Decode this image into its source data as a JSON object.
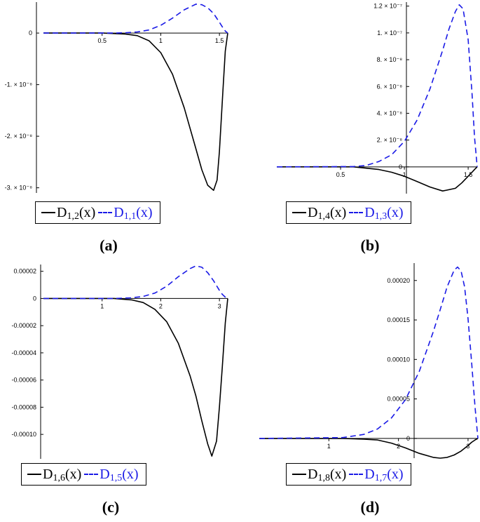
{
  "colors": {
    "solid": "#000000",
    "dashed": "#1a1ae6"
  },
  "chart_data": [
    {
      "type": "line",
      "caption": "(a)",
      "xlim": [
        0,
        1.5708
      ],
      "ylim": [
        -3.1e-08,
        6e-09
      ],
      "xticks": [
        {
          "v": 0.5,
          "label": "0.5"
        },
        {
          "v": 1,
          "label": "1"
        },
        {
          "v": 1.5,
          "label": "1.5"
        }
      ],
      "yticks": [
        {
          "v": 0,
          "label": "0"
        },
        {
          "v": -1e-08,
          "label": "-1. × 10⁻⁸"
        },
        {
          "v": -2e-08,
          "label": "-2. × 10⁻⁸"
        },
        {
          "v": -3e-08,
          "label": "-3. × 10⁻⁸"
        }
      ],
      "series": [
        {
          "name": "D1,2(x)",
          "base": "D",
          "sub": "1,2",
          "arg": "(x)",
          "style": "solid",
          "x": [
            0,
            0.5,
            0.7,
            0.8,
            0.9,
            1.0,
            1.1,
            1.2,
            1.3,
            1.35,
            1.4,
            1.45,
            1.48,
            1.5,
            1.53,
            1.55,
            1.5708
          ],
          "y": [
            0,
            0,
            -2e-10,
            -5e-10,
            -1.5e-09,
            -3.8e-09,
            -8e-09,
            -1.45e-08,
            -2.25e-08,
            -2.65e-08,
            -2.95e-08,
            -3.05e-08,
            -2.85e-08,
            -2.3e-08,
            -1.1e-08,
            -3.5e-09,
            0
          ]
        },
        {
          "name": "D1,1(x)",
          "base": "D",
          "sub": "1,1",
          "arg": "(x)",
          "style": "dashed",
          "x": [
            0,
            0.6,
            0.7,
            0.8,
            0.9,
            1.0,
            1.1,
            1.2,
            1.3,
            1.35,
            1.4,
            1.45,
            1.5,
            1.53,
            1.55,
            1.5708
          ],
          "y": [
            0,
            0,
            5e-11,
            2e-10,
            6e-10,
            1.5e-09,
            2.9e-09,
            4.5e-09,
            5.6e-09,
            5.5e-09,
            4.9e-09,
            3.8e-09,
            2.1e-09,
            1e-09,
            4e-10,
            0
          ]
        }
      ]
    },
    {
      "type": "line",
      "caption": "(b)",
      "xlim": [
        0,
        1.5708
      ],
      "ylim": [
        -2e-08,
        1.23e-07
      ],
      "xticks": [
        {
          "v": 0.5,
          "label": "0.5"
        },
        {
          "v": 1,
          "label": "1"
        },
        {
          "v": 1.5,
          "label": "1.5"
        }
      ],
      "yticks": [
        {
          "v": 0,
          "label": "0"
        },
        {
          "v": 2e-08,
          "label": "2. × 10⁻⁸"
        },
        {
          "v": 4e-08,
          "label": "4. × 10⁻⁸"
        },
        {
          "v": 6e-08,
          "label": "6. × 10⁻⁸"
        },
        {
          "v": 8e-08,
          "label": "8. × 10⁻⁸"
        },
        {
          "v": 1e-07,
          "label": "1. × 10⁻⁷"
        },
        {
          "v": 1.2e-07,
          "label": "1.2 × 10⁻⁷"
        }
      ],
      "series": [
        {
          "name": "D1,4(x)",
          "base": "D",
          "sub": "1,4",
          "arg": "(x)",
          "style": "solid",
          "x": [
            0,
            0.6,
            0.7,
            0.8,
            0.9,
            1.0,
            1.1,
            1.2,
            1.3,
            1.4,
            1.45,
            1.5,
            1.53,
            1.55,
            1.5708
          ],
          "y": [
            0,
            0,
            -1e-09,
            -2e-09,
            -4e-09,
            -7e-09,
            -1.1e-08,
            -1.5e-08,
            -1.8e-08,
            -1.6e-08,
            -1.2e-08,
            -7e-09,
            -4e-09,
            -2e-09,
            0
          ]
        },
        {
          "name": "D1,3(x)",
          "base": "D",
          "sub": "1,3",
          "arg": "(x)",
          "style": "dashed",
          "x": [
            0,
            0.6,
            0.7,
            0.8,
            0.9,
            1.0,
            1.1,
            1.2,
            1.3,
            1.35,
            1.4,
            1.43,
            1.46,
            1.5,
            1.53,
            1.55,
            1.5708
          ],
          "y": [
            0,
            2e-10,
            1e-09,
            4e-09,
            9e-09,
            1.9e-08,
            3.5e-08,
            5.8e-08,
            8.7e-08,
            1.03e-07,
            1.16e-07,
            1.21e-07,
            1.18e-07,
            9.5e-08,
            5.5e-08,
            2.2e-08,
            0
          ]
        }
      ]
    },
    {
      "type": "line",
      "caption": "(c)",
      "xlim": [
        0,
        3.1416
      ],
      "ylim": [
        -0.000118,
        2.5e-05
      ],
      "xticks": [
        {
          "v": 1,
          "label": "1"
        },
        {
          "v": 2,
          "label": "2"
        },
        {
          "v": 3,
          "label": "3"
        }
      ],
      "yticks": [
        {
          "v": 2e-05,
          "label": "0.00002"
        },
        {
          "v": 0,
          "label": "0"
        },
        {
          "v": -2e-05,
          "label": "-0.00002"
        },
        {
          "v": -4e-05,
          "label": "-0.00004"
        },
        {
          "v": -6e-05,
          "label": "-0.00006"
        },
        {
          "v": -8e-05,
          "label": "-0.00008"
        },
        {
          "v": -0.0001,
          "label": "-0.00010"
        }
      ],
      "series": [
        {
          "name": "D1,6(x)",
          "base": "D",
          "sub": "1,6",
          "arg": "(x)",
          "style": "solid",
          "x": [
            0,
            1.2,
            1.5,
            1.7,
            1.9,
            2.1,
            2.3,
            2.5,
            2.6,
            2.7,
            2.8,
            2.87,
            2.95,
            3.0,
            3.05,
            3.1,
            3.1416
          ],
          "y": [
            0,
            0,
            -1e-06,
            -3e-06,
            -8e-06,
            -1.7e-05,
            -3.3e-05,
            -5.7e-05,
            -7.2e-05,
            -9e-05,
            -0.000107,
            -0.000116,
            -0.000105,
            -8e-05,
            -5e-05,
            -1.8e-05,
            0
          ]
        },
        {
          "name": "D1,5(x)",
          "base": "D",
          "sub": "1,5",
          "arg": "(x)",
          "style": "dashed",
          "x": [
            0,
            1.2,
            1.5,
            1.7,
            1.9,
            2.1,
            2.3,
            2.5,
            2.6,
            2.7,
            2.8,
            2.9,
            3.0,
            3.05,
            3.1,
            3.1416
          ],
          "y": [
            0,
            0,
            5e-07,
            1.5e-06,
            4e-06,
            9e-06,
            1.6e-05,
            2.2e-05,
            2.4e-05,
            2.3e-05,
            1.9e-05,
            1.3e-05,
            6e-06,
            3e-06,
            1e-06,
            0
          ]
        }
      ]
    },
    {
      "type": "line",
      "caption": "(d)",
      "xlim": [
        0,
        3.1416
      ],
      "ylim": [
        -2.5e-05,
        0.000222
      ],
      "xticks": [
        {
          "v": 1,
          "label": "1"
        },
        {
          "v": 2,
          "label": "2"
        },
        {
          "v": 3,
          "label": "3"
        }
      ],
      "yticks": [
        {
          "v": 0,
          "label": "0"
        },
        {
          "v": 5e-05,
          "label": "0.00005"
        },
        {
          "v": 0.0001,
          "label": "0.00010"
        },
        {
          "v": 0.00015,
          "label": "0.00015"
        },
        {
          "v": 0.0002,
          "label": "0.00020"
        }
      ],
      "series": [
        {
          "name": "D1,8(x)",
          "base": "D",
          "sub": "1,8",
          "arg": "(x)",
          "style": "solid",
          "x": [
            0,
            1.2,
            1.5,
            1.7,
            1.9,
            2.1,
            2.3,
            2.5,
            2.6,
            2.7,
            2.8,
            2.9,
            3.0,
            3.05,
            3.1,
            3.1416
          ],
          "y": [
            0,
            0,
            -1e-06,
            -2e-06,
            -6e-06,
            -1.2e-05,
            -1.9e-05,
            -2.4e-05,
            -2.5e-05,
            -2.4e-05,
            -2.1e-05,
            -1.6e-05,
            -9e-06,
            -5e-06,
            -2e-06,
            0
          ]
        },
        {
          "name": "D1,7(x)",
          "base": "D",
          "sub": "1,7",
          "arg": "(x)",
          "style": "dashed",
          "x": [
            0,
            1.2,
            1.5,
            1.7,
            1.9,
            2.1,
            2.3,
            2.5,
            2.6,
            2.7,
            2.8,
            2.85,
            2.9,
            2.95,
            3.0,
            3.05,
            3.1,
            3.1416
          ],
          "y": [
            0,
            1e-06,
            5e-06,
            1.2e-05,
            2.6e-05,
            4.9e-05,
            8.5e-05,
            0.000135,
            0.000163,
            0.000192,
            0.000213,
            0.000217,
            0.000212,
            0.000192,
            0.000152,
            9.8e-05,
            4e-05,
            0
          ]
        }
      ]
    }
  ]
}
